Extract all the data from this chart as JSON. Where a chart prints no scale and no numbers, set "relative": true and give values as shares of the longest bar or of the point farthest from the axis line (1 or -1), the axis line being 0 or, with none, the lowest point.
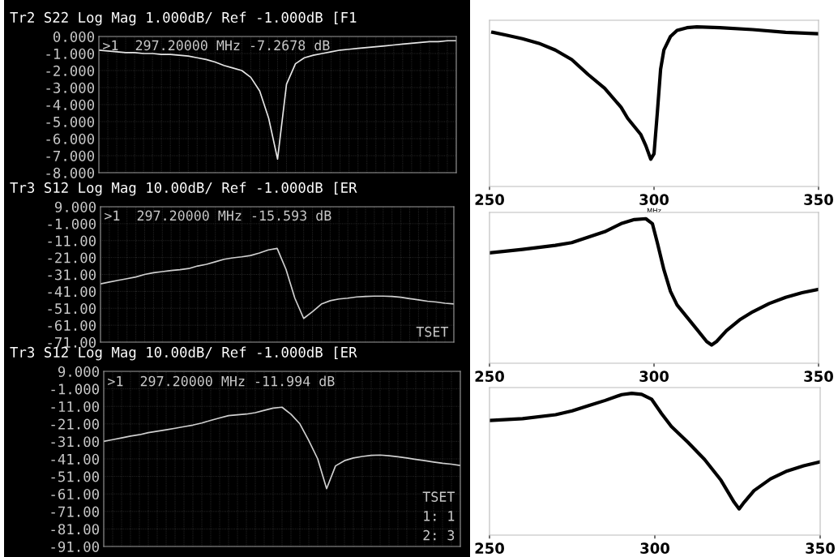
{
  "chart_data": [
    {
      "type": "line",
      "title": "Tr2 S22 Log Mag 1.000dB/ Ref -1.000dB [F1",
      "categories": [
        null,
        null,
        null,
        null,
        null,
        null,
        null,
        null,
        null,
        null,
        null,
        null,
        null,
        null,
        null,
        null,
        null,
        null,
        null,
        null,
        null,
        null,
        null,
        null,
        null,
        null,
        null,
        null,
        null,
        null,
        null,
        null,
        null,
        null,
        null,
        null,
        null,
        null,
        null,
        null,
        null
      ],
      "series": [
        {
          "color": "#e6e6e6",
          "values": [
            -0.8,
            -0.85,
            -0.9,
            -0.95,
            -0.95,
            -1.0,
            -1.0,
            -1.05,
            -1.05,
            -1.1,
            -1.15,
            -1.25,
            -1.35,
            -1.5,
            -1.7,
            -1.85,
            -2.0,
            -2.4,
            -3.2,
            -4.8,
            -7.2,
            -2.8,
            -1.6,
            -1.25,
            -1.1,
            -1.0,
            -0.9,
            -0.8,
            -0.75,
            -0.7,
            -0.65,
            -0.6,
            -0.55,
            -0.5,
            -0.45,
            -0.4,
            -0.35,
            -0.3,
            -0.3,
            -0.25,
            -0.25
          ]
        }
      ],
      "ylim": [
        -8,
        0
      ],
      "yticks": [
        {
          "value": 0,
          "label": "0.000"
        },
        {
          "value": -1,
          "label": "-1.000"
        },
        {
          "value": -2,
          "label": "-2.000"
        },
        {
          "value": -3,
          "label": "-3.000"
        },
        {
          "value": -4,
          "label": "-4.000"
        },
        {
          "value": -5,
          "label": "-5.000"
        },
        {
          "value": -6,
          "label": "-6.000"
        },
        {
          "value": -7,
          "label": "-7.000"
        },
        {
          "value": -8,
          "label": "-8.000"
        }
      ],
      "tick_labels": "y",
      "grid": true,
      "annotations": [
        ">1  297.20000 MHz -7.2678 dB"
      ]
    },
    {
      "type": "line",
      "xlabel": "MHz",
      "relative": true,
      "tick_labels": "x",
      "series": [
        {
          "color": "#000000",
          "x": [
            251,
            255,
            260,
            265,
            270,
            275,
            280,
            285,
            290,
            292,
            294,
            296,
            297.5,
            299,
            300,
            301,
            302,
            303,
            305,
            307,
            310,
            313,
            320,
            330,
            340,
            350
          ],
          "values": [
            0.966,
            0.949,
            0.926,
            0.897,
            0.855,
            0.795,
            0.701,
            0.615,
            0.496,
            0.427,
            0.376,
            0.325,
            0.256,
            0.171,
            0.205,
            0.462,
            0.735,
            0.855,
            0.94,
            0.978,
            0.995,
            1.0,
            0.995,
            0.983,
            0.966,
            0.957
          ]
        }
      ],
      "xlim": [
        250,
        350
      ],
      "xticks": [
        250,
        300,
        350
      ]
    },
    {
      "type": "line",
      "title": "Tr3 S12 Log Mag 10.00dB/ Ref -1.000dB [ER",
      "categories": [
        null,
        null,
        null,
        null,
        null,
        null,
        null,
        null,
        null,
        null,
        null,
        null,
        null,
        null,
        null,
        null,
        null,
        null,
        null,
        null,
        null,
        null,
        null,
        null,
        null,
        null,
        null,
        null,
        null,
        null,
        null,
        null,
        null,
        null,
        null,
        null,
        null,
        null,
        null,
        null,
        null
      ],
      "series": [
        {
          "color": "#d0d0d0",
          "values": [
            -36.6,
            -35.5,
            -34.5,
            -33.5,
            -32.5,
            -31,
            -30,
            -29.3,
            -28.7,
            -28.2,
            -27.5,
            -26,
            -25,
            -23.5,
            -22,
            -21.2,
            -20.6,
            -19.8,
            -18.3,
            -16.5,
            -15.6,
            -28,
            -45,
            -57,
            -53,
            -48.5,
            -46.5,
            -45.5,
            -45,
            -44.3,
            -44,
            -43.8,
            -43.8,
            -44,
            -44.5,
            -45.3,
            -46,
            -46.8,
            -47.3,
            -48,
            -48.4
          ]
        }
      ],
      "ylim": [
        -71,
        9
      ],
      "yticks": [
        {
          "value": 9,
          "label": "9.000"
        },
        {
          "value": -1,
          "label": "-1.000"
        },
        {
          "value": -11,
          "label": "-11.00"
        },
        {
          "value": -21,
          "label": "-21.00"
        },
        {
          "value": -31,
          "label": "-31.00"
        },
        {
          "value": -41,
          "label": "-41.00"
        },
        {
          "value": -51,
          "label": "-51.00"
        },
        {
          "value": -61,
          "label": "-61.00"
        },
        {
          "value": -71,
          "label": "-71.00"
        }
      ],
      "tick_labels": "y",
      "grid": true,
      "annotations": [
        ">1  297.20000 MHz -15.593 dB",
        "TSET"
      ]
    },
    {
      "type": "line",
      "relative": true,
      "tick_labels": "x",
      "series": [
        {
          "color": "#000000",
          "x": [
            250,
            260,
            270,
            275,
            280,
            285,
            290,
            294,
            297.5,
            299.5,
            301,
            303,
            305,
            307,
            310,
            313,
            316,
            317.5,
            319,
            322,
            326,
            330,
            335,
            340,
            345,
            350
          ],
          "values": [
            0.764,
            0.788,
            0.816,
            0.835,
            0.872,
            0.91,
            0.966,
            0.994,
            1.0,
            0.966,
            0.835,
            0.647,
            0.497,
            0.403,
            0.319,
            0.235,
            0.15,
            0.126,
            0.15,
            0.225,
            0.3,
            0.356,
            0.413,
            0.456,
            0.488,
            0.512
          ]
        }
      ],
      "xlim": [
        250,
        350
      ],
      "xticks": [
        250,
        300,
        350
      ]
    },
    {
      "type": "line",
      "title": "Tr3 S12 Log Mag 10.00dB/ Ref -1.000dB [ER",
      "categories": [
        null,
        null,
        null,
        null,
        null,
        null,
        null,
        null,
        null,
        null,
        null,
        null,
        null,
        null,
        null,
        null,
        null,
        null,
        null,
        null,
        null,
        null,
        null,
        null,
        null,
        null,
        null,
        null,
        null,
        null,
        null,
        null,
        null,
        null,
        null,
        null,
        null,
        null,
        null,
        null,
        null
      ],
      "series": [
        {
          "color": "#d0d0d0",
          "values": [
            -31,
            -30,
            -29,
            -28,
            -27.2,
            -26,
            -25.2,
            -24.4,
            -23.5,
            -22.6,
            -21.7,
            -20.5,
            -19,
            -17.6,
            -16.3,
            -15.8,
            -15.4,
            -14.6,
            -13.3,
            -12,
            -11.5,
            -15.5,
            -21,
            -30.5,
            -41,
            -58,
            -45,
            -42,
            -40.5,
            -39.6,
            -39,
            -38.8,
            -39.2,
            -39.8,
            -40.5,
            -41.3,
            -42,
            -42.8,
            -43.5,
            -44,
            -44.8
          ]
        }
      ],
      "ylim": [
        -91,
        9
      ],
      "yticks": [
        {
          "value": 9,
          "label": "9.000"
        },
        {
          "value": -1,
          "label": "-1.000"
        },
        {
          "value": -11,
          "label": "-11.00"
        },
        {
          "value": -21,
          "label": "-21.00"
        },
        {
          "value": -31,
          "label": "-31.00"
        },
        {
          "value": -41,
          "label": "-41.00"
        },
        {
          "value": -51,
          "label": "-51.00"
        },
        {
          "value": -61,
          "label": "-61.00"
        },
        {
          "value": -71,
          "label": "-71.00"
        },
        {
          "value": -81,
          "label": "-81.00"
        },
        {
          "value": -91,
          "label": "-91.00"
        }
      ],
      "tick_labels": "y",
      "grid": true,
      "annotations": [
        ">1  297.20000 MHz -11.994 dB",
        "TSET",
        "1: 1",
        "2: 3"
      ]
    },
    {
      "type": "line",
      "relative": true,
      "tick_labels": "x",
      "series": [
        {
          "color": "#000000",
          "x": [
            250,
            260,
            270,
            275,
            280,
            285,
            290,
            293,
            296,
            299,
            302,
            305,
            310,
            315,
            320,
            324,
            325.5,
            327,
            330,
            335,
            340,
            345,
            350
          ],
          "values": [
            0.808,
            0.821,
            0.849,
            0.876,
            0.913,
            0.95,
            0.991,
            1.0,
            0.993,
            0.959,
            0.858,
            0.766,
            0.655,
            0.535,
            0.387,
            0.231,
            0.185,
            0.231,
            0.314,
            0.397,
            0.452,
            0.489,
            0.517
          ]
        }
      ],
      "xlim": [
        250,
        350
      ],
      "xticks": [
        250,
        300,
        350
      ]
    }
  ]
}
